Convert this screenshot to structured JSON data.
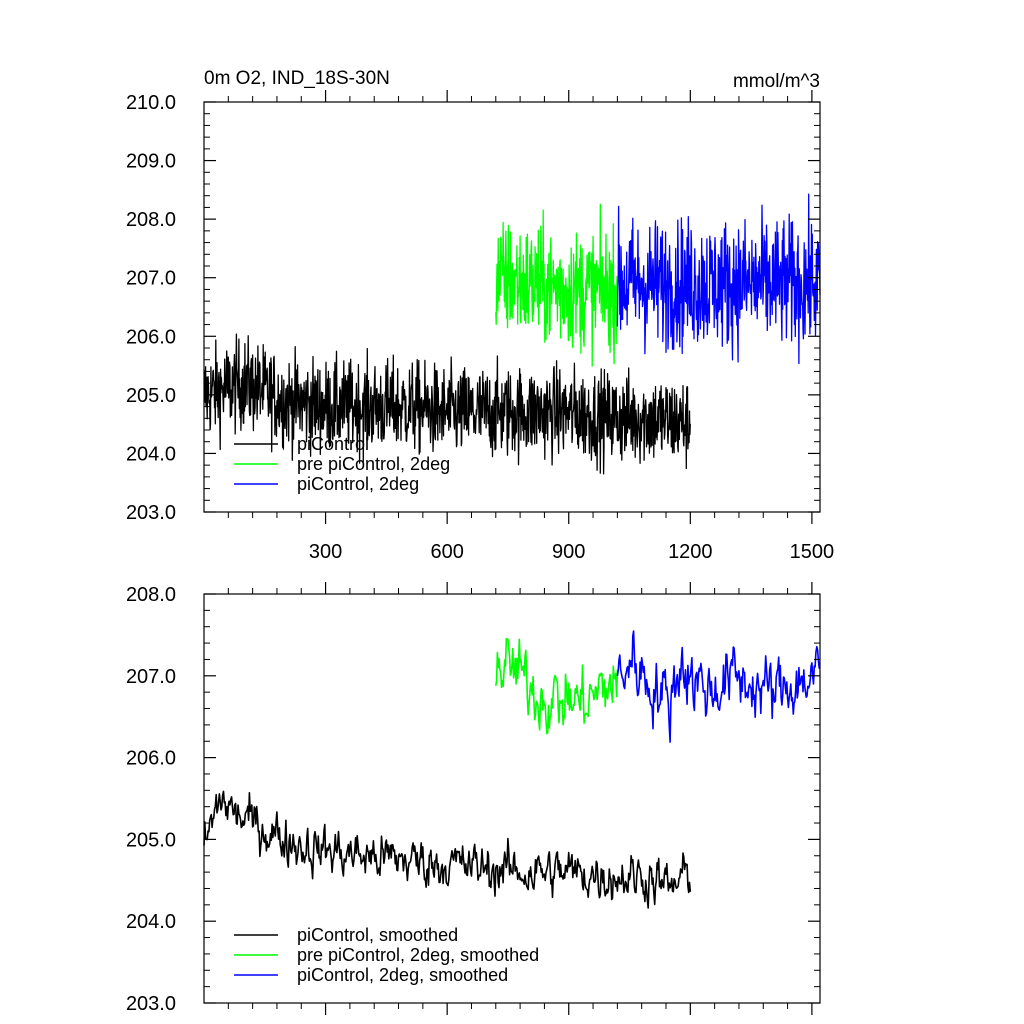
{
  "chart_data": [
    {
      "type": "line",
      "title": "0m O2, IND_18S-30N",
      "units": "mmol/m^3",
      "xlim": [
        0,
        1520
      ],
      "ylim": [
        203,
        210
      ],
      "x_ticks": [
        300,
        600,
        900,
        1200,
        1500
      ],
      "x_tick_labels": [
        "300",
        "600",
        "900",
        "1200",
        "1500"
      ],
      "y_ticks": [
        203,
        204,
        205,
        206,
        207,
        208,
        209,
        210
      ],
      "y_tick_labels": [
        "203.0",
        "204.0",
        "205.0",
        "206.0",
        "207.0",
        "208.0",
        "209.0",
        "210.0"
      ],
      "grid": false,
      "legend_position": "bottom-left",
      "series": [
        {
          "name": "piControl",
          "color": "#000000",
          "x": [
            0,
            100,
            200,
            300,
            400,
            500,
            600,
            700,
            800,
            900,
            1000,
            1100,
            1200
          ],
          "values": [
            205.0,
            205.2,
            204.9,
            204.8,
            204.8,
            204.8,
            204.7,
            204.7,
            204.7,
            204.7,
            204.6,
            204.6,
            204.5
          ],
          "noise": 0.85
        },
        {
          "name": "pre piControl, 2deg",
          "color": "#00ff00",
          "x": [
            720,
            800,
            900,
            1020
          ],
          "values": [
            207.0,
            206.9,
            206.8,
            206.8
          ],
          "noise": 1.1
        },
        {
          "name": "piControl, 2deg",
          "color": "#0000ff",
          "x": [
            1020,
            1100,
            1200,
            1300,
            1400,
            1520
          ],
          "values": [
            206.9,
            206.9,
            206.9,
            206.9,
            206.9,
            206.9
          ],
          "noise": 1.2
        }
      ]
    },
    {
      "type": "line",
      "xlim": [
        0,
        1520
      ],
      "ylim": [
        203,
        208
      ],
      "x_ticks": [
        300,
        600,
        900,
        1200,
        1500
      ],
      "y_ticks": [
        203,
        204,
        205,
        206,
        207,
        208
      ],
      "y_tick_labels": [
        "203.0",
        "204.0",
        "205.0",
        "206.0",
        "207.0",
        "208.0"
      ],
      "grid": false,
      "legend_position": "bottom-left",
      "series": [
        {
          "name": "piControl, smoothed",
          "color": "#000000",
          "x": [
            0,
            20,
            40,
            80,
            120,
            160,
            200,
            260,
            320,
            400,
            500,
            600,
            700,
            800,
            900,
            1000,
            1100,
            1150,
            1200
          ],
          "values": [
            204.9,
            205.2,
            205.5,
            205.3,
            205.2,
            205.1,
            205.0,
            204.9,
            204.85,
            204.8,
            204.75,
            204.7,
            204.65,
            204.6,
            204.6,
            204.55,
            204.55,
            204.4,
            204.6
          ],
          "noise": 0.22
        },
        {
          "name": "pre piControl, 2deg, smoothed",
          "color": "#00ff00",
          "x": [
            720,
            760,
            800,
            850,
            900,
            950,
            1000,
            1020
          ],
          "values": [
            207.1,
            207.1,
            206.9,
            206.7,
            206.7,
            206.7,
            206.9,
            206.9
          ],
          "noise": 0.3
        },
        {
          "name": "piControl, 2deg, smoothed",
          "color": "#0000ff",
          "x": [
            1020,
            1060,
            1100,
            1150,
            1180,
            1200,
            1250,
            1300,
            1350,
            1400,
            1450,
            1520
          ],
          "values": [
            207.0,
            207.2,
            206.9,
            206.7,
            207.2,
            207.0,
            206.8,
            207.0,
            206.9,
            206.8,
            206.9,
            207.0
          ],
          "noise": 0.3
        }
      ]
    }
  ]
}
